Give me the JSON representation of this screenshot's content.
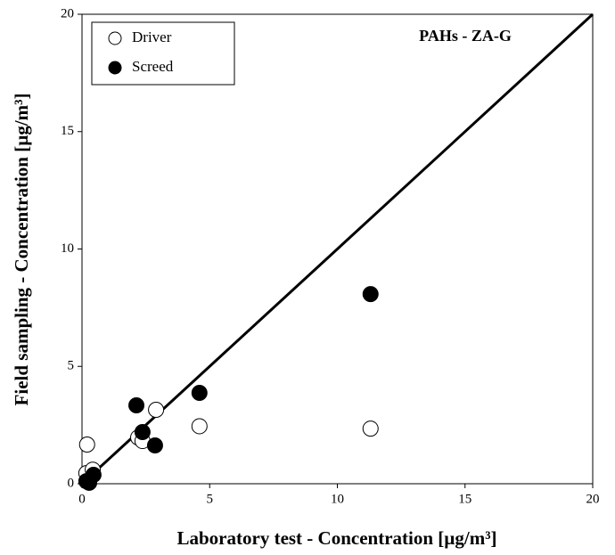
{
  "chart_data": {
    "type": "scatter",
    "annotation": "PAHs - ZA-G",
    "x_label": "Laboratory test - Concentration [µg/m³]",
    "y_label": "Field sampling - Concentration [µg/m³]",
    "xlim": [
      0,
      20
    ],
    "ylim": [
      0,
      20
    ],
    "xticks": [
      0,
      5,
      10,
      15,
      20
    ],
    "yticks": [
      0,
      5,
      10,
      15,
      20
    ],
    "legend": "upper left",
    "series": [
      {
        "name": "Driver",
        "color": "#ffffff",
        "x": [
          0.17,
          0.2,
          0.42,
          2.2,
          2.37,
          2.9,
          4.6,
          11.3
        ],
        "values": [
          0.45,
          1.67,
          0.6,
          1.97,
          1.82,
          3.15,
          2.45,
          2.35
        ]
      },
      {
        "name": "Screed",
        "color": "#000000",
        "x": [
          0.17,
          0.28,
          0.45,
          2.13,
          2.37,
          2.86,
          4.6,
          11.3
        ],
        "values": [
          0.11,
          0.04,
          0.38,
          3.34,
          2.2,
          1.63,
          3.87,
          8.08
        ]
      }
    ]
  }
}
